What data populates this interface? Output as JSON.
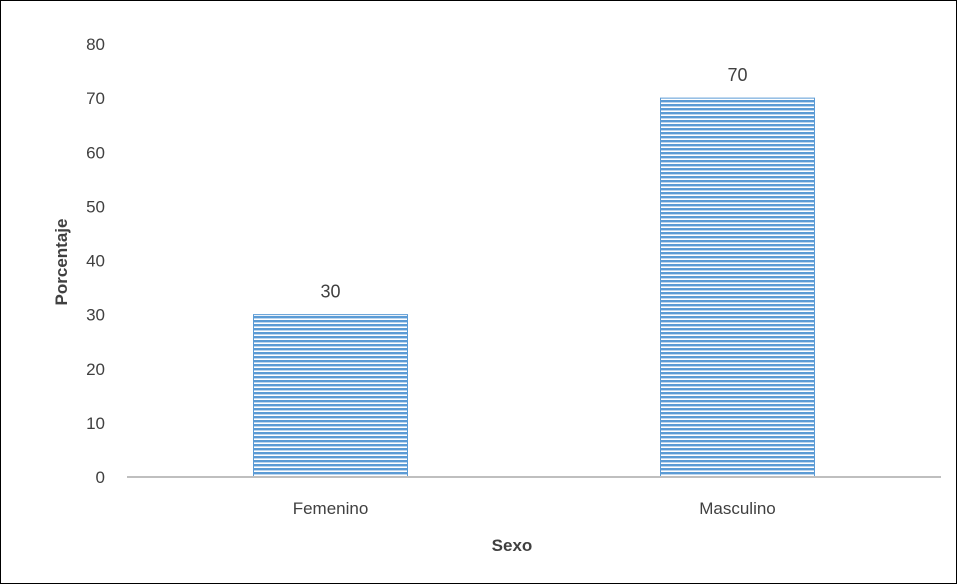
{
  "chart_data": {
    "type": "bar",
    "categories": [
      "Femenino",
      "Masculino"
    ],
    "values": [
      30,
      70
    ],
    "data_labels": [
      "30",
      "70"
    ],
    "title": "",
    "xlabel": "Sexo",
    "ylabel": "Porcentaje",
    "ylim": [
      0,
      80
    ],
    "yticks": [
      "0",
      "10",
      "20",
      "30",
      "40",
      "50",
      "60",
      "70",
      "80"
    ],
    "grid": false,
    "legend": "none",
    "bar_color": "#5b9bd5",
    "bar_pattern": "horizontal-stripes",
    "axis_color": "#bfbfbf"
  }
}
